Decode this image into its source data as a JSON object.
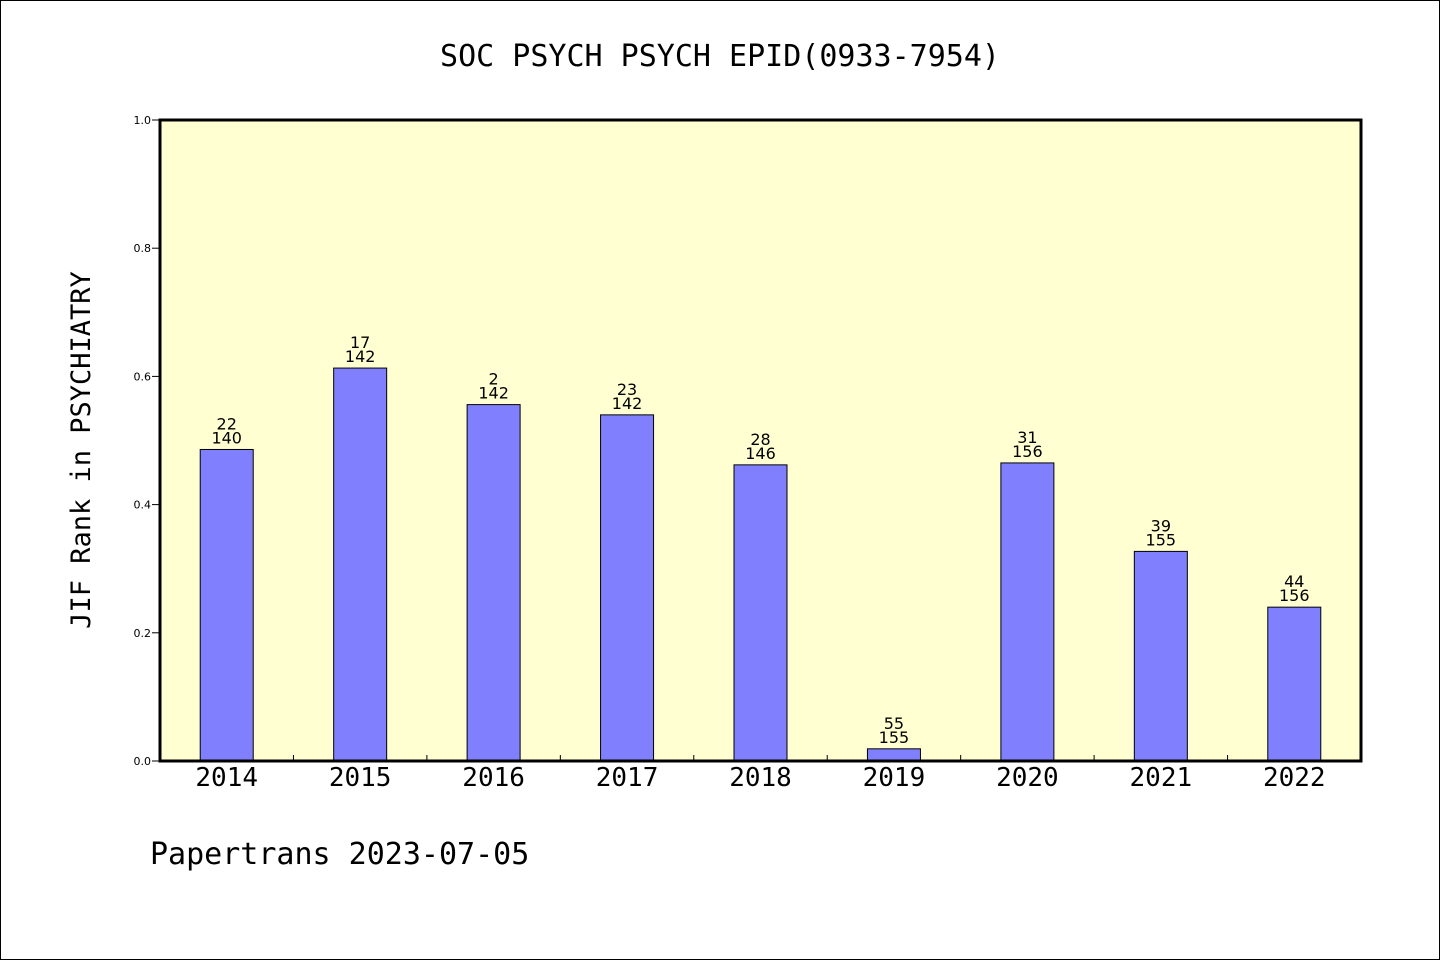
{
  "chart_data": {
    "type": "bar",
    "title": "SOC PSYCH PSYCH EPID(0933-7954)",
    "ylabel": "JIF Rank in PSYCHIATRY",
    "xlabel": "",
    "ylim": [
      0,
      1.0
    ],
    "yticks": [
      "0.0",
      "0.2",
      "0.4",
      "0.6",
      "0.8",
      "1.0"
    ],
    "categories": [
      "2014",
      "2015",
      "2016",
      "2017",
      "2018",
      "2019",
      "2020",
      "2021",
      "2022"
    ],
    "values": [
      0.486,
      0.613,
      0.556,
      0.54,
      0.462,
      0.019,
      0.465,
      0.327,
      0.24
    ],
    "rank_labels": [
      "22",
      "17",
      "2",
      "23",
      "28",
      "55",
      "31",
      "39",
      "44"
    ],
    "total_labels": [
      "140",
      "142",
      "142",
      "142",
      "146",
      "155",
      "156",
      "155",
      "156"
    ],
    "grid": false,
    "colors": {
      "plot_background": "#ffffd2",
      "bar_fill": "#8080ff",
      "bar_stroke": "#000000"
    }
  },
  "footer": {
    "credit": "Papertrans 2023-07-05"
  }
}
